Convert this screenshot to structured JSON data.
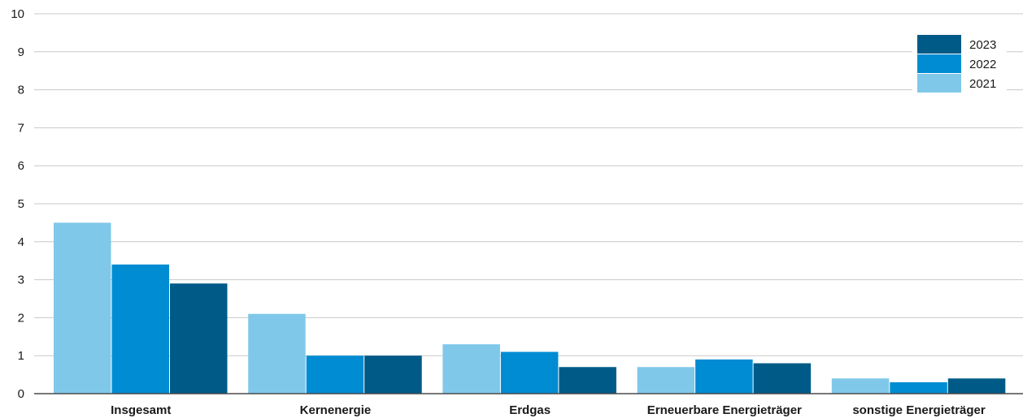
{
  "chart_data": {
    "type": "bar",
    "categories": [
      "Insgesamt",
      "Kernenergie",
      "Erdgas",
      "Erneuerbare Energieträger",
      "sonstige Energieträger"
    ],
    "series": [
      {
        "name": "2021",
        "color": "#7fc8ea",
        "values": [
          4.5,
          2.1,
          1.3,
          0.7,
          0.4
        ]
      },
      {
        "name": "2022",
        "color": "#008cd2",
        "values": [
          3.4,
          1.0,
          1.1,
          0.9,
          0.3
        ]
      },
      {
        "name": "2023",
        "color": "#005a87",
        "values": [
          2.9,
          1.0,
          0.7,
          0.8,
          0.4
        ]
      }
    ],
    "ylim": [
      0,
      10
    ],
    "yticks": [
      "0",
      "1",
      "2",
      "3",
      "4",
      "5",
      "6",
      "7",
      "8",
      "9",
      "10"
    ],
    "grid": true,
    "legend": {
      "placement": "top-right",
      "order": [
        "2023",
        "2022",
        "2021"
      ]
    },
    "title": "",
    "xlabel": "",
    "ylabel": ""
  }
}
